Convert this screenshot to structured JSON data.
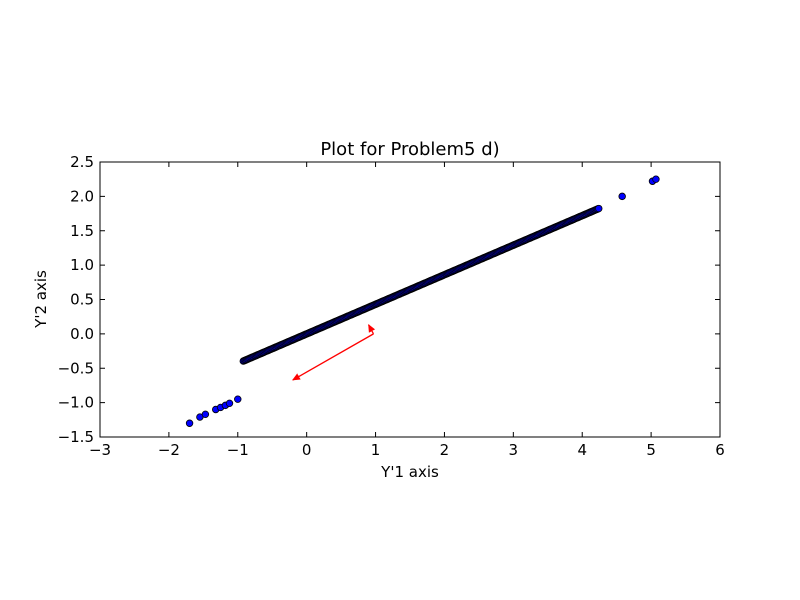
{
  "chart_data": {
    "type": "scatter",
    "title": "Plot for Problem5 d)",
    "xlabel": "Y'1 axis",
    "ylabel": "Y'2 axis",
    "xlim": [
      -3,
      6
    ],
    "ylim": [
      -1.5,
      2.5
    ],
    "xticks": [
      -3,
      -2,
      -1,
      0,
      1,
      2,
      3,
      4,
      5,
      6
    ],
    "yticks": [
      -1.5,
      -1.0,
      -0.5,
      0.0,
      0.5,
      1.0,
      1.5,
      2.0,
      2.5
    ],
    "xtick_labels": [
      "−3",
      "−2",
      "−1",
      "0",
      "1",
      "2",
      "3",
      "4",
      "5",
      "6"
    ],
    "ytick_labels": [
      "−1.5",
      "−1.0",
      "−0.5",
      "0.0",
      "0.5",
      "1.0",
      "1.5",
      "2.0",
      "2.5"
    ],
    "grid": false,
    "marker_color": "#0000ff",
    "marker_edge_color": "#000000",
    "line": {
      "x_start": -0.92,
      "x_end": 4.24,
      "intercept": 0.0,
      "slope": 0.43
    },
    "outliers": [
      {
        "x": -1.7,
        "y": -1.3
      },
      {
        "x": -1.55,
        "y": -1.21
      },
      {
        "x": -1.47,
        "y": -1.17
      },
      {
        "x": -1.32,
        "y": -1.1
      },
      {
        "x": -1.25,
        "y": -1.07
      },
      {
        "x": -1.18,
        "y": -1.04
      },
      {
        "x": -1.12,
        "y": -1.01
      },
      {
        "x": -1.0,
        "y": -0.95
      },
      {
        "x": 4.58,
        "y": 2.0
      },
      {
        "x": 5.02,
        "y": 2.22
      },
      {
        "x": 5.07,
        "y": 2.25
      }
    ],
    "vectors": [
      {
        "from": [
          0.97,
          0.0
        ],
        "to": [
          -0.2,
          -0.67
        ],
        "color": "#ff0000"
      },
      {
        "from": [
          0.97,
          0.0
        ],
        "to": [
          0.9,
          0.13
        ],
        "color": "#ff0000"
      }
    ]
  }
}
